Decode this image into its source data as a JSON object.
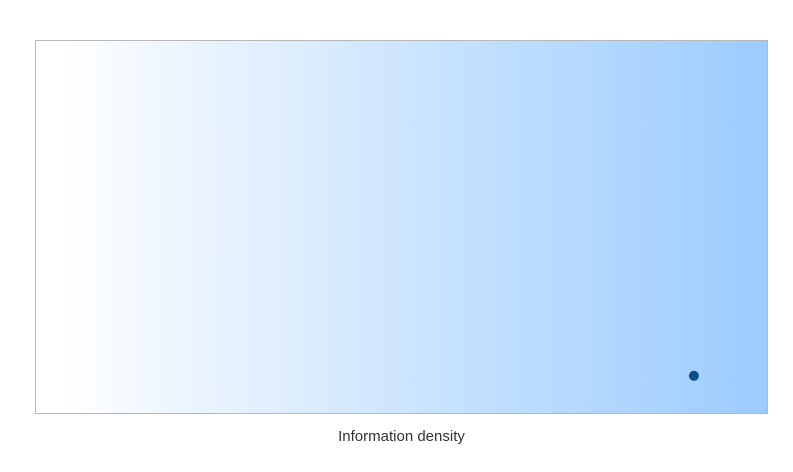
{
  "chart_data": {
    "type": "scatter",
    "title": "",
    "xlabel": "Information density",
    "ylabel": "",
    "xlim": [
      0,
      1
    ],
    "ylim": [
      0,
      1
    ],
    "grid": false,
    "background_gradient": {
      "direction": "left-to-right",
      "from": "#ffffff",
      "to": "#9ccbff"
    },
    "series": [
      {
        "color": "#0b4d86",
        "points": [
          {
            "x": 0.9,
            "y": 0.1
          }
        ]
      }
    ]
  }
}
